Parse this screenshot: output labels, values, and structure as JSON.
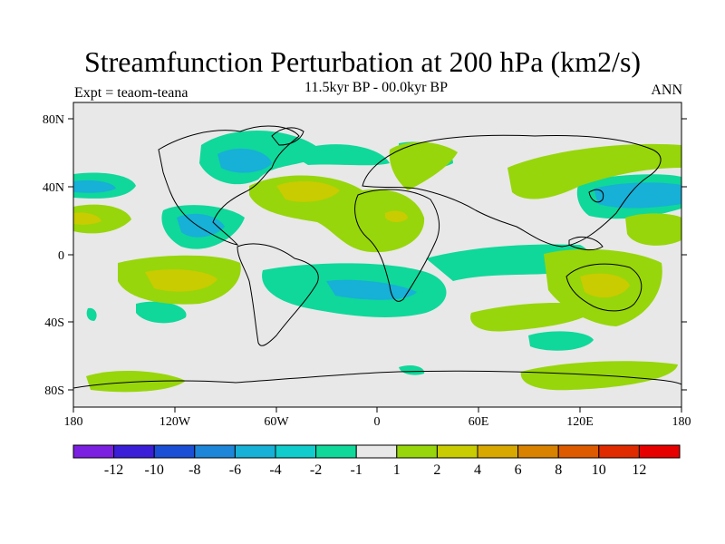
{
  "title": "Streamfunction Perturbation at 200 hPa (km2/s)",
  "subtitle": "11.5kyr BP - 00.0kyr BP",
  "experiment": "Expt = teaom-teana",
  "season": "ANN",
  "lat_ticks": [
    "80N",
    "40N",
    "0",
    "40S",
    "80S"
  ],
  "lon_ticks": [
    "180",
    "120W",
    "60W",
    "0",
    "60E",
    "120E",
    "180"
  ],
  "colorbar": {
    "labels": [
      "-12",
      "-10",
      "-8",
      "-6",
      "-4",
      "-2",
      "-1",
      "1",
      "2",
      "4",
      "6",
      "8",
      "10",
      "12"
    ],
    "colors": [
      "#7b1fe0",
      "#3b1ed8",
      "#1a4fd6",
      "#1d86d8",
      "#17b0d6",
      "#10cccc",
      "#0fd89a",
      "#e8e8e8",
      "#97d60a",
      "#c8cc00",
      "#d8a800",
      "#d88200",
      "#de5a00",
      "#e02a00",
      "#e60000"
    ]
  },
  "colors": {
    "neutral": "#e8e8e8",
    "neg1": "#0fd89a",
    "neg2": "#10cccc",
    "neg4": "#17b0d6",
    "pos1": "#97d60a",
    "pos2": "#c8cc00"
  }
}
